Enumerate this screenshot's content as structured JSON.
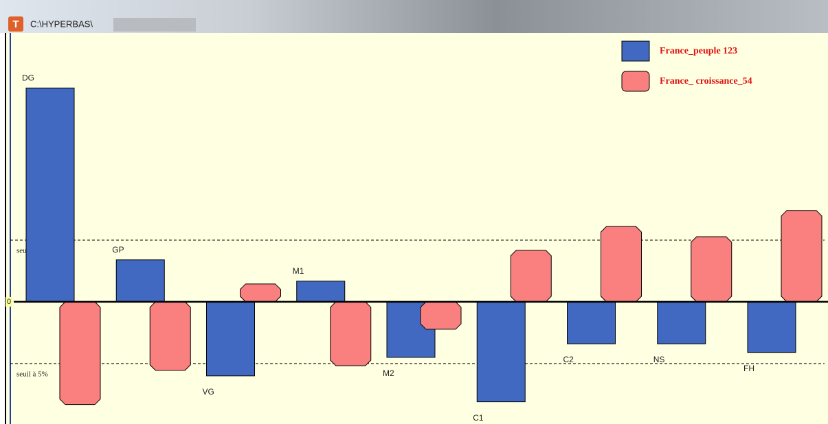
{
  "window_title": "C:\\HYPERBAS\\",
  "chart_data": {
    "type": "bar",
    "categories": [
      "DG",
      "GP",
      "VG",
      "M1",
      "M2",
      "C1",
      "C2",
      "NS",
      "FH"
    ],
    "series": [
      {
        "name": "France_peuple 123",
        "color": "#4169c1",
        "values": [
          6.93,
          1.36,
          -2.4,
          0.67,
          -1.8,
          -3.24,
          -1.36,
          -1.36,
          -1.64
        ]
      },
      {
        "name": "France_ croissance_54",
        "color": "#fa8080",
        "values": [
          -3.33,
          -2.22,
          0.58,
          -2.07,
          -0.89,
          1.67,
          2.44,
          2.11,
          2.96
        ]
      }
    ],
    "ylim": [
      -3.96,
      8.67
    ],
    "yticks": [
      0
    ],
    "reference_lines": [
      {
        "value": 2,
        "label": "seuil à 5%"
      },
      {
        "value": -2,
        "label": "seuil à 5%"
      }
    ],
    "legend": "upper right"
  }
}
